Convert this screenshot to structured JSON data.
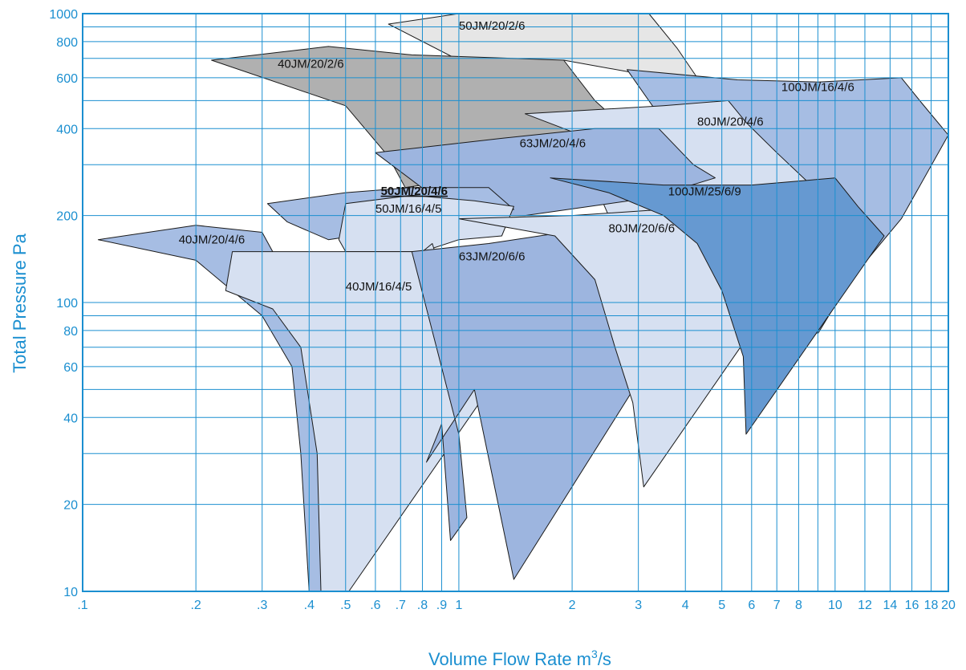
{
  "chart_data": {
    "type": "area",
    "title": "",
    "xlabel": "Volume Flow Rate m",
    "xlabel_sup": "3",
    "xlabel_suffix": "/s",
    "ylabel": "Total Pressure Pa",
    "x_scale": "log",
    "y_scale": "log",
    "xlim": [
      0.1,
      20
    ],
    "ylim": [
      10,
      1000
    ],
    "grid": true,
    "x_ticks": [
      {
        "v": 0.1,
        "label": ".1"
      },
      {
        "v": 0.2,
        "label": ".2"
      },
      {
        "v": 0.3,
        "label": ".3"
      },
      {
        "v": 0.4,
        "label": ".4"
      },
      {
        "v": 0.5,
        "label": ".5"
      },
      {
        "v": 0.6,
        "label": ".6"
      },
      {
        "v": 0.7,
        "label": ".7"
      },
      {
        "v": 0.8,
        "label": ".8"
      },
      {
        "v": 0.9,
        "label": ".9"
      },
      {
        "v": 1,
        "label": "1"
      },
      {
        "v": 2,
        "label": "2"
      },
      {
        "v": 3,
        "label": "3"
      },
      {
        "v": 4,
        "label": "4"
      },
      {
        "v": 5,
        "label": "5"
      },
      {
        "v": 6,
        "label": "6"
      },
      {
        "v": 7,
        "label": "7"
      },
      {
        "v": 8,
        "label": "8"
      },
      {
        "v": 10,
        "label": "10"
      },
      {
        "v": 12,
        "label": "12"
      },
      {
        "v": 14,
        "label": "14"
      },
      {
        "v": 16,
        "label": "16"
      },
      {
        "v": 18,
        "label": "18"
      },
      {
        "v": 20,
        "label": "20"
      }
    ],
    "x_grid_minor": [
      9
    ],
    "y_ticks": [
      {
        "v": 10,
        "label": "10"
      },
      {
        "v": 20,
        "label": "20"
      },
      {
        "v": 40,
        "label": "40"
      },
      {
        "v": 60,
        "label": "60"
      },
      {
        "v": 80,
        "label": "80"
      },
      {
        "v": 100,
        "label": "100"
      },
      {
        "v": 200,
        "label": "200"
      },
      {
        "v": 400,
        "label": "400"
      },
      {
        "v": 600,
        "label": "600"
      },
      {
        "v": 800,
        "label": "800"
      },
      {
        "v": 1000,
        "label": "1000"
      }
    ],
    "y_grid_minor": [
      30,
      50,
      70,
      90,
      300,
      500,
      700,
      900
    ],
    "colors": {
      "axis": "#1b8fd0",
      "grid": "#1b8fd0",
      "outline": "#1a1a1a"
    },
    "regions": [
      {
        "name": "50JM/20/2/6",
        "color": "#e6e6e6",
        "points": [
          [
            0.65,
            920
          ],
          [
            1.0,
            1000
          ],
          [
            3.2,
            1000
          ],
          [
            3.8,
            760
          ],
          [
            4.3,
            600
          ],
          [
            3.0,
            620
          ],
          [
            1.9,
            690
          ],
          [
            1.0,
            690
          ]
        ],
        "label_at": [
          1.0,
          880
        ],
        "bold": false
      },
      {
        "name": "40JM/20/2/6",
        "color": "#b0b0b0",
        "points": [
          [
            0.22,
            690
          ],
          [
            0.45,
            770
          ],
          [
            0.75,
            720
          ],
          [
            1.9,
            690
          ],
          [
            2.3,
            500
          ],
          [
            2.9,
            380
          ],
          [
            2.5,
            330
          ],
          [
            1.6,
            290
          ],
          [
            0.72,
            250
          ],
          [
            0.65,
            320
          ],
          [
            0.5,
            480
          ]
        ],
        "label_at": [
          0.33,
          650
        ],
        "bold": false
      },
      {
        "name": "100JM/16/4/6",
        "color": "#a6bde3",
        "points": [
          [
            2.8,
            640
          ],
          [
            5.5,
            590
          ],
          [
            9.0,
            580
          ],
          [
            15.0,
            600
          ],
          [
            17.0,
            490
          ],
          [
            20.0,
            380
          ],
          [
            15.0,
            195
          ],
          [
            11.0,
            120
          ],
          [
            9.0,
            78
          ],
          [
            6.5,
            135
          ],
          [
            5.5,
            290
          ],
          [
            4.0,
            330
          ]
        ],
        "label_at": [
          7.2,
          540
        ],
        "bold": false
      },
      {
        "name": "80JM/20/4/6",
        "color": "#d6e0f1",
        "points": [
          [
            1.5,
            450
          ],
          [
            3.5,
            480
          ],
          [
            5.2,
            500
          ],
          [
            5.8,
            420
          ],
          [
            7.0,
            330
          ],
          [
            8.5,
            260
          ],
          [
            6.0,
            200
          ],
          [
            4.0,
            180
          ],
          [
            2.5,
            200
          ],
          [
            2.0,
            390
          ]
        ],
        "label_at": [
          4.3,
          410
        ],
        "bold": false
      },
      {
        "name": "63JM/20/4/6",
        "color": "#9db5df",
        "points": [
          [
            0.6,
            330
          ],
          [
            1.3,
            370
          ],
          [
            2.3,
            400
          ],
          [
            3.4,
            400
          ],
          [
            4.2,
            300
          ],
          [
            4.8,
            270
          ],
          [
            3.2,
            230
          ],
          [
            1.5,
            200
          ],
          [
            1.0,
            200
          ]
        ],
        "label_at": [
          1.45,
          345
        ],
        "bold": false
      },
      {
        "name": "50JM/20/4/6",
        "color": "#a6bde3",
        "points": [
          [
            0.31,
            220
          ],
          [
            0.5,
            240
          ],
          [
            0.75,
            250
          ],
          [
            1.2,
            250
          ],
          [
            1.4,
            210
          ],
          [
            1.0,
            200
          ],
          [
            0.7,
            180
          ],
          [
            0.45,
            165
          ],
          [
            0.35,
            190
          ]
        ],
        "label_at": [
          0.62,
          236
        ],
        "bold": true
      },
      {
        "name": "50JM/16/4/5",
        "color": "#d6e0f1",
        "points": [
          [
            0.5,
            220
          ],
          [
            0.75,
            235
          ],
          [
            1.1,
            225
          ],
          [
            1.4,
            215
          ],
          [
            1.3,
            170
          ],
          [
            1.0,
            165
          ],
          [
            0.8,
            150
          ],
          [
            0.5,
            150
          ],
          [
            0.48,
            165
          ]
        ],
        "label_at": [
          0.6,
          205
        ],
        "bold": false
      },
      {
        "name": "40JM/20/4/6",
        "color": "#a6bde3",
        "points": [
          [
            0.11,
            165
          ],
          [
            0.2,
            185
          ],
          [
            0.3,
            175
          ],
          [
            0.32,
            150
          ],
          [
            0.37,
            120
          ],
          [
            0.42,
            90
          ],
          [
            0.45,
            60
          ],
          [
            0.47,
            40
          ],
          [
            0.49,
            25
          ],
          [
            0.5,
            10
          ],
          [
            0.4,
            10
          ],
          [
            0.38,
            30
          ],
          [
            0.36,
            60
          ],
          [
            0.3,
            90
          ],
          [
            0.2,
            140
          ]
        ],
        "label_at": [
          0.18,
          160
        ],
        "bold": false
      },
      {
        "name": "40JM/16/4/5",
        "color": "#d6e0f1",
        "points": [
          [
            0.25,
            150
          ],
          [
            0.5,
            150
          ],
          [
            0.8,
            150
          ],
          [
            0.85,
            160
          ],
          [
            0.87,
            145
          ],
          [
            0.9,
            140
          ],
          [
            1.1,
            130
          ],
          [
            1.2,
            100
          ],
          [
            1.35,
            70
          ],
          [
            1.38,
            65
          ],
          [
            0.51,
            10
          ],
          [
            0.43,
            10
          ],
          [
            0.42,
            30
          ],
          [
            0.38,
            70
          ],
          [
            0.32,
            95
          ],
          [
            0.24,
            110
          ]
        ],
        "label_at": [
          0.5,
          110
        ],
        "bold": false
      },
      {
        "name": "63JM/20/6/6",
        "color": "#9db5df",
        "points": [
          [
            0.75,
            150
          ],
          [
            1.2,
            160
          ],
          [
            1.9,
            175
          ],
          [
            2.3,
            150
          ],
          [
            2.7,
            110
          ],
          [
            3.0,
            80
          ],
          [
            3.3,
            65
          ],
          [
            1.4,
            11
          ],
          [
            1.1,
            50
          ],
          [
            0.82,
            28
          ],
          [
            0.9,
            38
          ],
          [
            0.95,
            15
          ],
          [
            1.05,
            18
          ],
          [
            1.0,
            35
          ]
        ],
        "label_at": [
          1.0,
          140
        ],
        "bold": false
      },
      {
        "name": "80JM/20/6/6",
        "color": "#d6e0f1",
        "points": [
          [
            1.0,
            195
          ],
          [
            2.0,
            200
          ],
          [
            3.5,
            210
          ],
          [
            4.3,
            170
          ],
          [
            5.0,
            120
          ],
          [
            5.5,
            90
          ],
          [
            6.0,
            80
          ],
          [
            5.6,
            70
          ],
          [
            3.1,
            23
          ],
          [
            2.9,
            45
          ],
          [
            2.6,
            70
          ],
          [
            2.3,
            120
          ],
          [
            1.8,
            170
          ]
        ],
        "label_at": [
          2.5,
          175
        ],
        "bold": false
      },
      {
        "name": "100JM/25/6/9",
        "color": "#6699d1",
        "points": [
          [
            1.75,
            270
          ],
          [
            3.5,
            255
          ],
          [
            6.0,
            255
          ],
          [
            8.5,
            265
          ],
          [
            10.0,
            270
          ],
          [
            11.5,
            215
          ],
          [
            13.5,
            170
          ],
          [
            5.8,
            35
          ],
          [
            5.7,
            65
          ],
          [
            5.0,
            110
          ],
          [
            4.3,
            160
          ],
          [
            3.5,
            200
          ],
          [
            2.5,
            240
          ]
        ],
        "label_at": [
          3.6,
          235
        ],
        "bold": false
      }
    ]
  }
}
